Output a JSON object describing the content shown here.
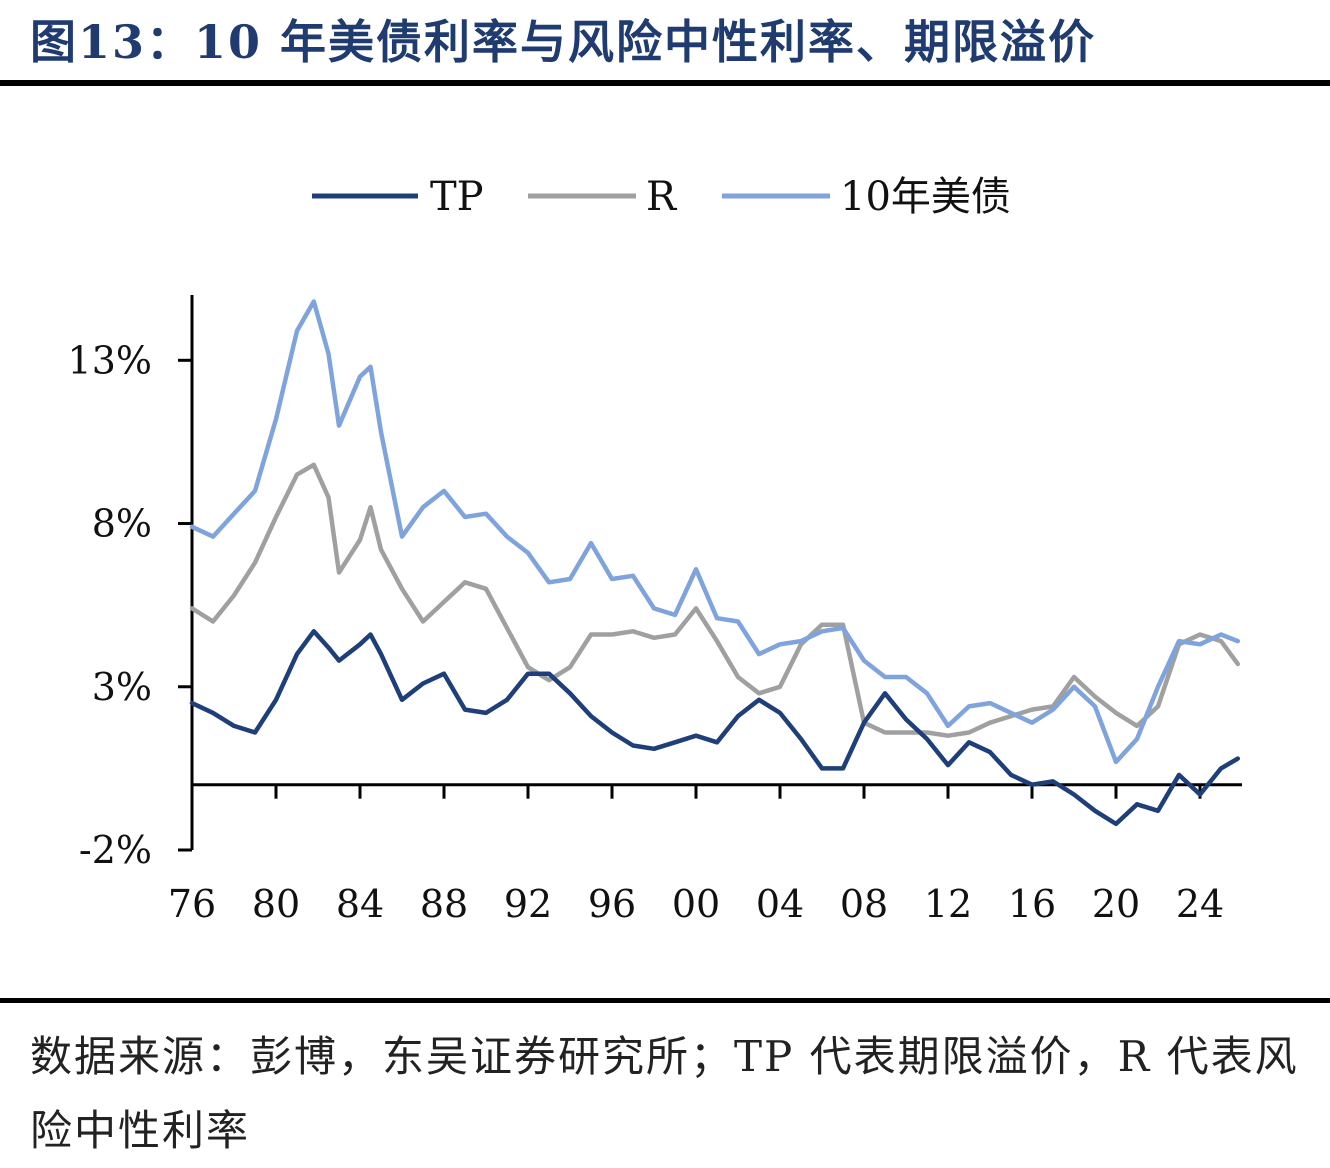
{
  "title": "图13：10 年美债利率与风险中性利率、期限溢价",
  "note": "数据来源：彭博，东吴证券研究所；TP 代表期限溢价，R 代表风险中性利率",
  "chart_data": {
    "type": "line",
    "title": "图13：10 年美债利率与风险中性利率、期限溢价",
    "xlabel": "",
    "ylabel": "",
    "legend": "top",
    "grid": false,
    "xlim": [
      1976,
      2026
    ],
    "ylim": [
      -2,
      15
    ],
    "x_ticks": [
      1976,
      1980,
      1984,
      1988,
      1992,
      1996,
      2000,
      2004,
      2008,
      2012,
      2016,
      2020,
      2024
    ],
    "x_tick_labels": [
      "76",
      "80",
      "84",
      "88",
      "92",
      "96",
      "00",
      "04",
      "08",
      "12",
      "16",
      "20",
      "24"
    ],
    "y_ticks": [
      -2,
      3,
      8,
      13
    ],
    "y_tick_labels": [
      "-2%",
      "3%",
      "8%",
      "13%"
    ],
    "x": [
      1976,
      1977,
      1978,
      1979,
      1980,
      1981,
      1981.8,
      1982.5,
      1983,
      1984,
      1984.5,
      1985,
      1986,
      1987,
      1988,
      1989,
      1990,
      1991,
      1992,
      1993,
      1994,
      1995,
      1996,
      1997,
      1998,
      1999,
      2000,
      2001,
      2002,
      2003,
      2004,
      2005,
      2006,
      2007,
      2008,
      2009,
      2010,
      2011,
      2012,
      2013,
      2014,
      2015,
      2016,
      2017,
      2018,
      2019,
      2020,
      2021,
      2022,
      2023,
      2024,
      2025,
      2025.8
    ],
    "series": [
      {
        "name": "TP",
        "color": "#1f3f7a",
        "values": [
          2.5,
          2.2,
          1.8,
          1.6,
          2.6,
          4.0,
          4.7,
          4.2,
          3.8,
          4.3,
          4.6,
          4.0,
          2.6,
          3.1,
          3.4,
          2.3,
          2.2,
          2.6,
          3.4,
          3.4,
          2.8,
          2.1,
          1.6,
          1.2,
          1.1,
          1.3,
          1.5,
          1.3,
          2.1,
          2.6,
          2.2,
          1.4,
          0.5,
          0.5,
          1.9,
          2.8,
          2.0,
          1.4,
          0.6,
          1.3,
          1.0,
          0.3,
          0.0,
          0.1,
          -0.3,
          -0.8,
          -1.2,
          -0.6,
          -0.8,
          0.3,
          -0.3,
          0.5,
          0.8
        ]
      },
      {
        "name": "R",
        "color": "#a0a0a0",
        "values": [
          5.4,
          5.0,
          5.8,
          6.8,
          8.2,
          9.5,
          9.8,
          8.8,
          6.5,
          7.5,
          8.5,
          7.2,
          6.0,
          5.0,
          5.6,
          6.2,
          6.0,
          4.8,
          3.6,
          3.2,
          3.6,
          4.6,
          4.6,
          4.7,
          4.5,
          4.6,
          5.4,
          4.4,
          3.3,
          2.8,
          3.0,
          4.3,
          4.9,
          4.9,
          1.9,
          1.6,
          1.6,
          1.6,
          1.5,
          1.6,
          1.9,
          2.1,
          2.3,
          2.4,
          3.3,
          2.7,
          2.2,
          1.8,
          2.4,
          4.3,
          4.6,
          4.4,
          3.7
        ]
      },
      {
        "name": "10年美债",
        "color": "#7fa3dc",
        "values": [
          7.9,
          7.6,
          8.3,
          9.0,
          11.2,
          13.9,
          14.8,
          13.2,
          11.0,
          12.5,
          12.8,
          10.8,
          7.6,
          8.5,
          9.0,
          8.2,
          8.3,
          7.6,
          7.1,
          6.2,
          6.3,
          7.4,
          6.3,
          6.4,
          5.4,
          5.2,
          6.6,
          5.1,
          5.0,
          4.0,
          4.3,
          4.4,
          4.7,
          4.8,
          3.8,
          3.3,
          3.3,
          2.8,
          1.8,
          2.4,
          2.5,
          2.2,
          1.9,
          2.3,
          3.0,
          2.4,
          0.7,
          1.4,
          3.0,
          4.4,
          4.3,
          4.6,
          4.4
        ]
      }
    ]
  }
}
